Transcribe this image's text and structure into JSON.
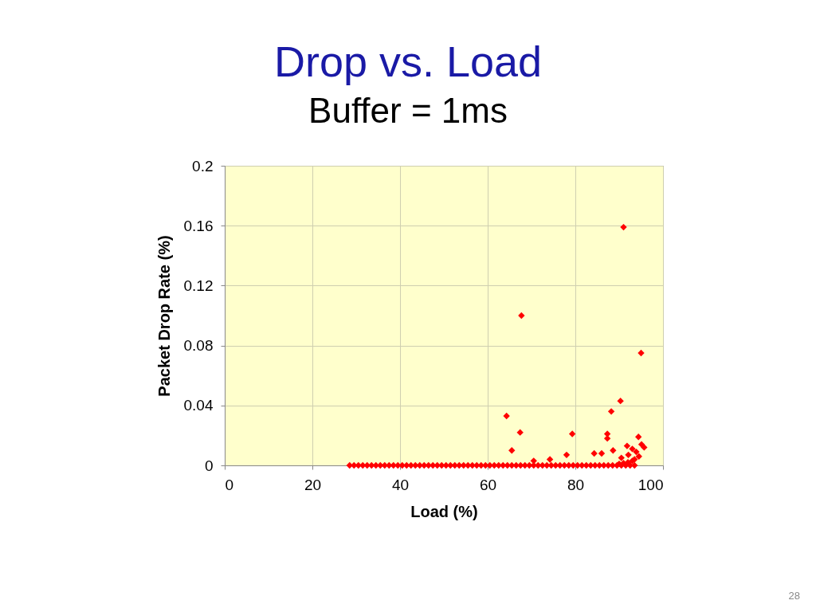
{
  "chart_data": {
    "type": "scatter",
    "title": "Drop vs. Load",
    "subtitle": "Buffer = 1ms",
    "xlabel": "Load (%)",
    "ylabel": "Packet Drop Rate (%)",
    "x": [
      28.5,
      29.5,
      30.5,
      31.5,
      32.5,
      33.5,
      34.5,
      35.5,
      36.5,
      37.5,
      38.5,
      39.5,
      40.5,
      41.5,
      42.5,
      43.5,
      44.5,
      45.5,
      46.5,
      47.5,
      48.5,
      49.5,
      50.5,
      51.5,
      52.5,
      53.5,
      54.5,
      55.5,
      56.5,
      57.5,
      58.5,
      59.5,
      60.5,
      61.5,
      62.5,
      63.5,
      64.5,
      65.5,
      66.5,
      67.5,
      68.5,
      69.5,
      70.5,
      71.5,
      72.5,
      73.5,
      74.5,
      75.5,
      76.5,
      77.5,
      78.5,
      79.5,
      80.5,
      81.5,
      82.5,
      83.5,
      84.5,
      85.5,
      86.5,
      87.5,
      88.5,
      89.5,
      90.5,
      91.5,
      92.5,
      93.5,
      90,
      91,
      92,
      93,
      93.5,
      91.0,
      67.7,
      95.0,
      90.3,
      88.2,
      64.3,
      67.4,
      79.3,
      87.3,
      87.3,
      94.4,
      65.5,
      84.3,
      86.0,
      88.6,
      91.8,
      95.7,
      95.1,
      78.0,
      74.2,
      70.5,
      93.0,
      93.9,
      94.5,
      90.5,
      92.1
    ],
    "values": [
      0,
      0,
      0,
      0,
      0,
      0,
      0,
      0,
      0,
      0,
      0,
      0,
      0,
      0,
      0,
      0,
      0,
      0,
      0,
      0,
      0,
      0,
      0,
      0,
      0,
      0,
      0,
      0,
      0,
      0,
      0,
      0,
      0,
      0,
      0,
      0,
      0,
      0,
      0,
      0,
      0,
      0,
      0,
      0,
      0,
      0,
      0,
      0,
      0,
      0,
      0,
      0,
      0,
      0,
      0,
      0,
      0,
      0,
      0,
      0,
      0,
      0,
      0,
      0,
      0,
      0,
      0.001,
      0.0015,
      0.002,
      0.003,
      0.004,
      0.159,
      0.1,
      0.075,
      0.043,
      0.036,
      0.033,
      0.022,
      0.021,
      0.021,
      0.018,
      0.019,
      0.01,
      0.008,
      0.008,
      0.01,
      0.013,
      0.012,
      0.014,
      0.007,
      0.004,
      0.003,
      0.011,
      0.009,
      0.006,
      0.005,
      0.007
    ],
    "color": "#ff0000",
    "marker": "diamond",
    "grid": true,
    "xlim": [
      0,
      100
    ],
    "xticks": [
      0,
      20,
      40,
      60,
      80,
      100
    ],
    "ylim": [
      0,
      0.2
    ],
    "yticks": [
      0,
      0.04,
      0.08,
      0.12,
      0.16,
      0.2
    ],
    "annotations": [
      "28"
    ]
  }
}
